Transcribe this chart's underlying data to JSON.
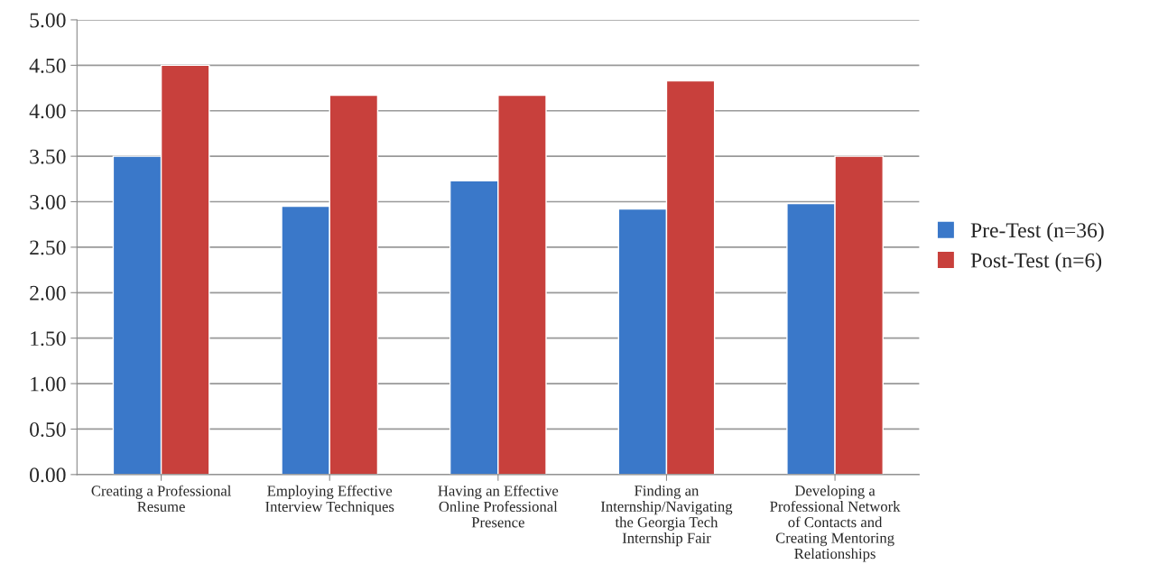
{
  "chart_data": {
    "type": "bar",
    "categories": [
      "Creating a Professional\nResume",
      "Employing Effective\nInterview Techniques",
      "Having an Effective\nOnline Professional\nPresence",
      "Finding an\nInternship/Navigating\nthe Georgia Tech\nInternship Fair",
      "Developing a\nProfessional Network\nof Contacts and\nCreating Mentoring\nRelationships"
    ],
    "series": [
      {
        "name": "Pre-Test (n=36)",
        "color": "#3a78c9",
        "values": [
          3.5,
          2.95,
          3.23,
          2.92,
          2.98
        ]
      },
      {
        "name": "Post-Test (n=6)",
        "color": "#c8403c",
        "values": [
          4.5,
          4.17,
          4.17,
          4.33,
          3.5
        ]
      }
    ],
    "ylim": [
      0,
      5
    ],
    "yticks": [
      {
        "value": 0,
        "label": "0.00"
      },
      {
        "value": 0.5,
        "label": "0.50"
      },
      {
        "value": 1,
        "label": "1.00"
      },
      {
        "value": 1.5,
        "label": "1.50"
      },
      {
        "value": 2,
        "label": "2.00"
      },
      {
        "value": 2.5,
        "label": "2.50"
      },
      {
        "value": 3,
        "label": "3.00"
      },
      {
        "value": 3.5,
        "label": "3.50"
      },
      {
        "value": 4,
        "label": "4.00"
      },
      {
        "value": 4.5,
        "label": "4.50"
      },
      {
        "value": 5,
        "label": "5.00"
      }
    ],
    "grid": "y",
    "legend": "right"
  }
}
